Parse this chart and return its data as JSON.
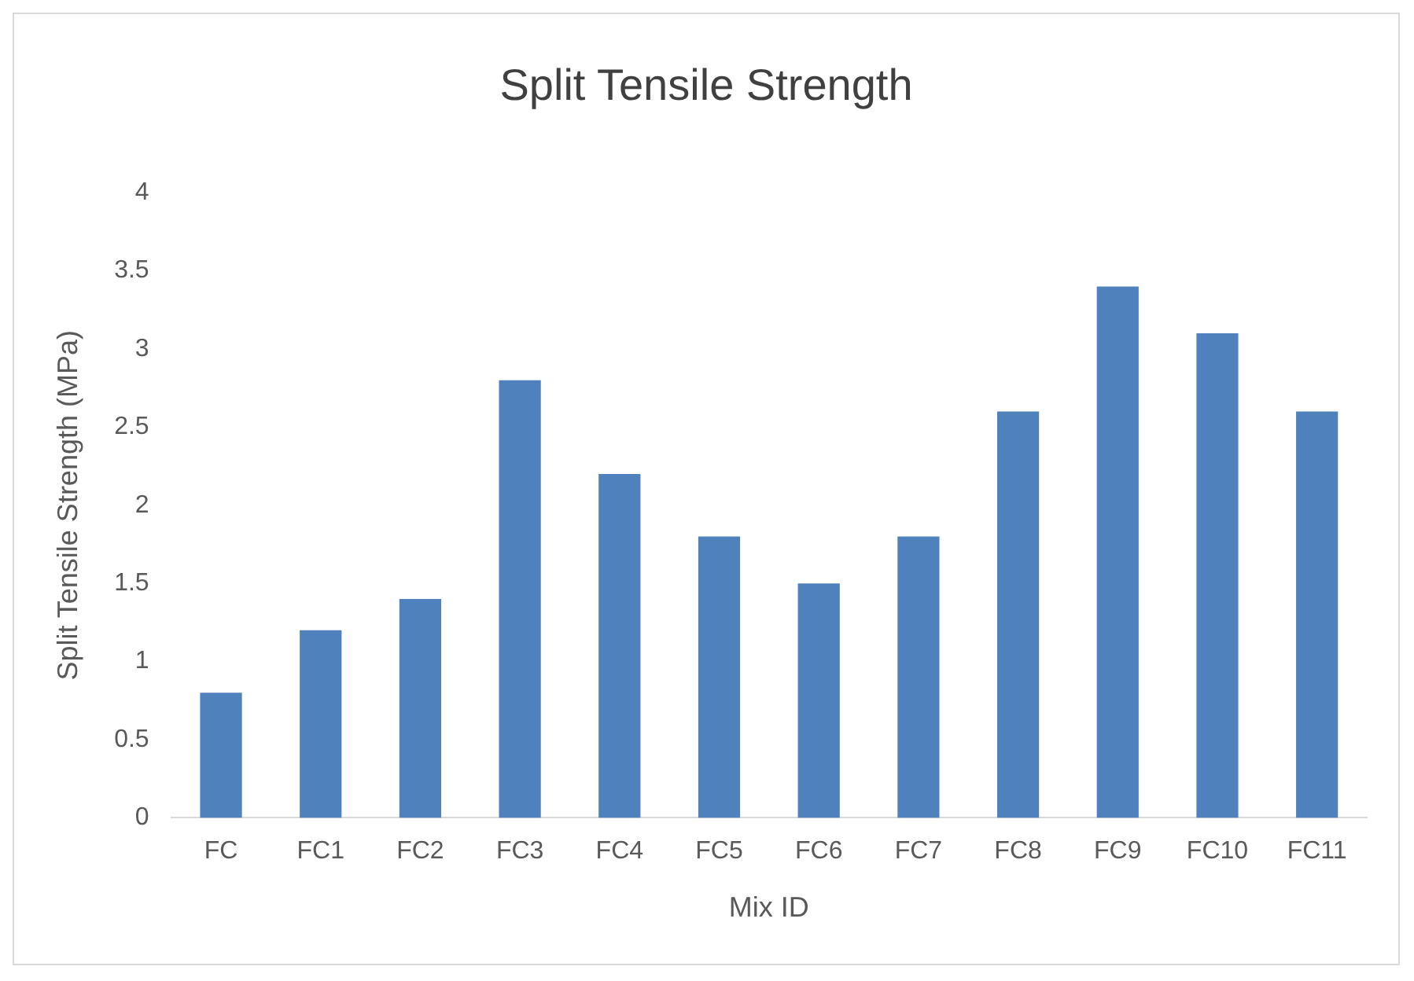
{
  "chart_data": {
    "type": "bar",
    "title": "Split Tensile Strength",
    "xlabel": "Mix ID",
    "ylabel": "Split Tensile Strength (MPa)",
    "categories": [
      "FC",
      "FC1",
      "FC2",
      "FC3",
      "FC4",
      "FC5",
      "FC6",
      "FC7",
      "FC8",
      "FC9",
      "FC10",
      "FC11"
    ],
    "values": [
      0.8,
      1.2,
      1.4,
      2.8,
      2.2,
      1.8,
      1.5,
      1.8,
      2.6,
      3.4,
      3.1,
      2.6
    ],
    "color": "#4f81bd",
    "ylim": [
      0,
      4
    ],
    "yticks": [
      0,
      0.5,
      1,
      1.5,
      2,
      2.5,
      3,
      3.5,
      4
    ],
    "grid": false,
    "legend": false
  }
}
